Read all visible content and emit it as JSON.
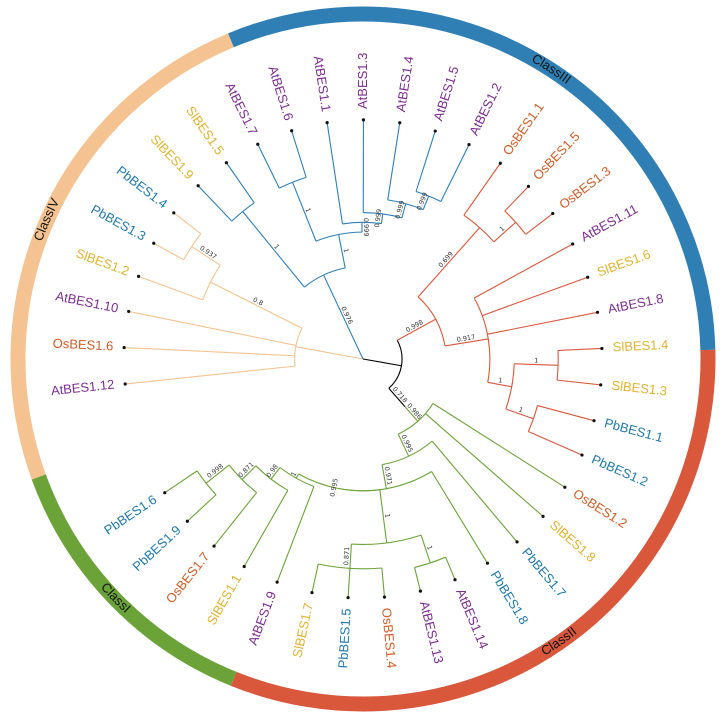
{
  "colors": {
    "At": "#7b2d8e",
    "Os": "#cf5c26",
    "Pb": "#1f78a8",
    "Sl": "#e0b32e",
    "ClassI": "#6ba339",
    "ClassII": "#d9573b",
    "ClassIII": "#2f7fb5",
    "ClassIV": "#f5c391",
    "root": "#000000"
  },
  "classes": [
    {
      "id": "ClassIV",
      "label": "ClassIV",
      "start": 160,
      "end": 247.5
    },
    {
      "id": "ClassIII",
      "label": "ClassIII",
      "start": 247.5,
      "end": 358.5
    },
    {
      "id": "ClassII",
      "label": "ClassII",
      "start": 358.5,
      "end": 472
    },
    {
      "id": "ClassI",
      "label": "ClassI",
      "start": 472,
      "end": 520
    }
  ],
  "leaves": [
    {
      "name": "AtBES1.12",
      "species": "At"
    },
    {
      "name": "OsBES1.6",
      "species": "Os"
    },
    {
      "name": "AtBES1.10",
      "species": "At"
    },
    {
      "name": "SlBES1.2",
      "species": "Sl"
    },
    {
      "name": "PbBES1.3",
      "species": "Pb"
    },
    {
      "name": "PbBES1.4",
      "species": "Pb"
    },
    {
      "name": "SlBES1.9",
      "species": "Sl"
    },
    {
      "name": "SlBES1.5",
      "species": "Sl"
    },
    {
      "name": "AtBES1.7",
      "species": "At"
    },
    {
      "name": "AtBES1.6",
      "species": "At"
    },
    {
      "name": "AtBES1.1",
      "species": "At"
    },
    {
      "name": "AtBES1.3",
      "species": "At"
    },
    {
      "name": "AtBES1.4",
      "species": "At"
    },
    {
      "name": "AtBES1.5",
      "species": "At"
    },
    {
      "name": "AtBES1.2",
      "species": "At"
    },
    {
      "name": "OsBES1.1",
      "species": "Os"
    },
    {
      "name": "OsBES1.5",
      "species": "Os"
    },
    {
      "name": "OsBES1.3",
      "species": "Os"
    },
    {
      "name": "AtBES1.11",
      "species": "At"
    },
    {
      "name": "SlBES1.6",
      "species": "Sl"
    },
    {
      "name": "AtBES1.8",
      "species": "At"
    },
    {
      "name": "SlBES1.4",
      "species": "Sl"
    },
    {
      "name": "SlBES1.3",
      "species": "Sl"
    },
    {
      "name": "PbBES1.1",
      "species": "Pb"
    },
    {
      "name": "PbBES1.2",
      "species": "Pb"
    },
    {
      "name": "OsBES1.2",
      "species": "Os"
    },
    {
      "name": "SlBES1.8",
      "species": "Sl"
    },
    {
      "name": "PbBES1.7",
      "species": "Pb"
    },
    {
      "name": "PbBES1.8",
      "species": "Pb"
    },
    {
      "name": "AtBES1.14",
      "species": "At"
    },
    {
      "name": "AtBES1.13",
      "species": "At"
    },
    {
      "name": "OsBES1.4",
      "species": "Os"
    },
    {
      "name": "PbBES1.5",
      "species": "Pb"
    },
    {
      "name": "SlBES1.7",
      "species": "Sl"
    },
    {
      "name": "AtBES1.9",
      "species": "At"
    },
    {
      "name": "SlBES1.1",
      "species": "Sl"
    },
    {
      "name": "OsBES1.7",
      "species": "Os"
    },
    {
      "name": "PbBES1.9",
      "species": "Pb"
    },
    {
      "name": "PbBES1.6",
      "species": "Pb"
    }
  ],
  "tree": {
    "c": "root",
    "ch": [
      {
        "r": 0.28,
        "c": "ClassIV",
        "ch": [
          {
            "r": 0.98,
            "leaf": 0
          },
          {
            "r": 0.98,
            "leaf": 1
          },
          {
            "r": 0.98,
            "leaf": 2
          },
          {
            "r": 0.7,
            "s": "0.8",
            "ch": [
              {
                "r": 0.98,
                "leaf": 3
              },
              {
                "r": 0.84,
                "s": "0.937",
                "ch": [
                  {
                    "r": 0.98,
                    "leaf": 4
                  },
                  {
                    "r": 0.98,
                    "leaf": 5
                  }
                ]
              }
            ]
          }
        ]
      },
      {
        "r": 0.38,
        "c": "ClassIII",
        "s": "0.976",
        "ch": [
          {
            "r": 0.78,
            "s": "1",
            "ch": [
              {
                "r": 0.98,
                "leaf": 6
              },
              {
                "r": 0.98,
                "leaf": 7
              }
            ]
          },
          {
            "r": 0.52,
            "s": "1",
            "ch": [
              {
                "r": 0.78,
                "s": "1",
                "ch": [
                  {
                    "r": 0.98,
                    "leaf": 8
                  },
                  {
                    "r": 0.98,
                    "leaf": 9
                  }
                ]
              },
              {
                "r": 0.56,
                "s": "0.999",
                "ch": [
                  {
                    "r": 0.98,
                    "leaf": 10
                  },
                  {
                    "r": 0.6,
                    "s": "0.999",
                    "ch": [
                      {
                        "r": 0.98,
                        "leaf": 11
                      },
                      {
                        "r": 0.66,
                        "s": "0.999",
                        "ch": [
                          {
                            "r": 0.98,
                            "leaf": 12
                          },
                          {
                            "r": 0.72,
                            "s": "0.999",
                            "ch": [
                              {
                                "r": 0.98,
                                "leaf": 13
                              },
                              {
                                "r": 0.98,
                                "leaf": 14
                              }
                            ]
                          }
                        ]
                      }
                    ]
                  }
                ]
              }
            ]
          }
        ]
      },
      {
        "r": 0.16,
        "c": "root",
        "ch": [
          {
            "r": 0.34,
            "c": "ClassII",
            "s": "0.998",
            "ch": [
              {
                "r": 0.72,
                "s": "0.699",
                "ch": [
                  {
                    "r": 0.98,
                    "leaf": 15
                  },
                  {
                    "r": 0.84,
                    "s": "1",
                    "ch": [
                      {
                        "r": 0.98,
                        "leaf": 16
                      },
                      {
                        "r": 0.98,
                        "leaf": 17
                      }
                    ]
                  }
                ]
              },
              {
                "r": 0.52,
                "s": "0.917",
                "ch": [
                  {
                    "r": 0.98,
                    "leaf": 18
                  },
                  {
                    "r": 0.98,
                    "leaf": 19
                  },
                  {
                    "r": 0.98,
                    "leaf": 20
                  },
                  {
                    "r": 0.62,
                    "s": "1",
                    "ch": [
                      {
                        "r": 0.8,
                        "s": "1",
                        "ch": [
                          {
                            "r": 0.98,
                            "leaf": 21
                          },
                          {
                            "r": 0.98,
                            "leaf": 22
                          }
                        ]
                      },
                      {
                        "r": 0.74,
                        "s": "1",
                        "ch": [
                          {
                            "r": 0.98,
                            "leaf": 23
                          },
                          {
                            "r": 0.98,
                            "leaf": 24
                          }
                        ]
                      }
                    ]
                  }
                ]
              }
            ]
          },
          {
            "r": 0.26,
            "c": "root",
            "s": "0.718",
            "ch": [
              {
                "r": 0.34,
                "c": "ClassI",
                "s": "0.986",
                "ch": [
                  {
                    "r": 0.98,
                    "leaf": 25
                  },
                  {
                    "r": 0.98,
                    "leaf": 26
                  },
                  {
                    "r": 0.44,
                    "s": "0.995",
                    "ch": [
                      {
                        "r": 0.98,
                        "leaf": 27
                      },
                      {
                        "r": 0.54,
                        "s": "0.971",
                        "ch": [
                          {
                            "r": 0.98,
                            "leaf": 28
                          },
                          {
                            "r": 0.54,
                            "s": "0.995",
                            "ch": [
                              {
                                "r": 0.76,
                                "s": "1",
                                "ch": [
                                  {
                                    "r": 0.88,
                                    "s": "1",
                                    "ch": [
                                      {
                                        "r": 0.98,
                                        "leaf": 29
                                      },
                                      {
                                        "r": 0.98,
                                        "leaf": 30
                                      }
                                    ]
                                  },
                                  {
                                    "r": 0.86,
                                    "s": "0.871",
                                    "ch": [
                                      {
                                        "r": 0.98,
                                        "leaf": 31
                                      },
                                      {
                                        "r": 0.98,
                                        "leaf": 32
                                      },
                                      {
                                        "r": 0.98,
                                        "leaf": 33
                                      }
                                    ]
                                  }
                                ]
                              },
                              {
                                "r": 0.56,
                                "s": "1",
                                "ch": [
                                  {
                                    "r": 0.98,
                                    "leaf": 34
                                  },
                                  {
                                    "r": 0.62,
                                    "s": "0.98",
                                    "ch": [
                                      {
                                        "r": 0.98,
                                        "leaf": 35
                                      },
                                      {
                                        "r": 0.7,
                                        "s": "0.871",
                                        "ch": [
                                          {
                                            "r": 0.98,
                                            "leaf": 36
                                          },
                                          {
                                            "r": 0.82,
                                            "s": "0.998",
                                            "ch": [
                                              {
                                                "r": 0.98,
                                                "leaf": 37
                                              },
                                              {
                                                "r": 0.98,
                                                "leaf": 38
                                              }
                                            ]
                                          }
                                        ]
                                      }
                                    ]
                                  }
                                ]
                              }
                            ]
                          }
                        ]
                      }
                    ]
                  }
                ]
              }
            ]
          }
        ]
      }
    ]
  }
}
